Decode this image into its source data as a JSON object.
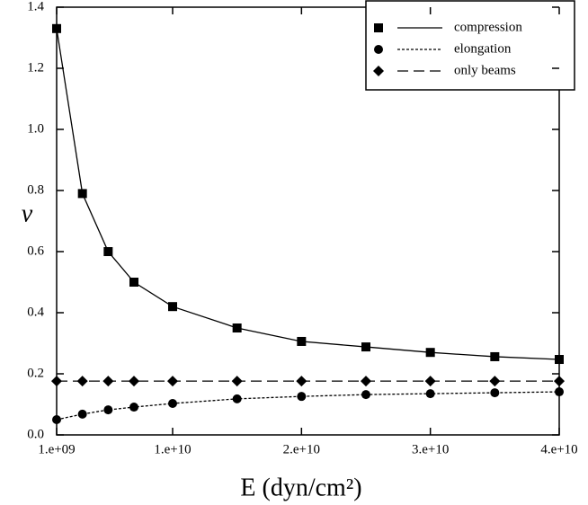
{
  "chart_data": {
    "type": "line",
    "x_label": "E (dyn/cm²)",
    "y_label": "ν",
    "x": [
      1000000000.0,
      3000000000.0,
      5000000000.0,
      7000000000.0,
      10000000000.0,
      15000000000.0,
      20000000000.0,
      25000000000.0,
      30000000000.0,
      35000000000.0,
      40000000000.0
    ],
    "series": [
      {
        "name": "compression",
        "color": "#000000",
        "marker": "square",
        "linestyle": "solid",
        "values": [
          1.33,
          0.79,
          0.6,
          0.5,
          0.42,
          0.35,
          0.306,
          0.288,
          0.27,
          0.256,
          0.247
        ]
      },
      {
        "name": "elongation",
        "color": "#000000",
        "marker": "circle",
        "linestyle": "dotted",
        "values": [
          0.05,
          0.068,
          0.082,
          0.091,
          0.103,
          0.118,
          0.126,
          0.132,
          0.135,
          0.138,
          0.141
        ]
      },
      {
        "name": "only beams",
        "color": "#000000",
        "marker": "diamond",
        "linestyle": "dashed",
        "values": [
          0.176,
          0.176,
          0.176,
          0.176,
          0.176,
          0.176,
          0.176,
          0.176,
          0.176,
          0.176,
          0.176
        ]
      }
    ],
    "xlim": [
      1000000000.0,
      40000000000.0
    ],
    "xticks": [
      {
        "value": 1000000000.0,
        "label": "1.e+09"
      },
      {
        "value": 10000000000.0,
        "label": "1.e+10"
      },
      {
        "value": 20000000000.0,
        "label": "2.e+10"
      },
      {
        "value": 30000000000.0,
        "label": "3.e+10"
      },
      {
        "value": 40000000000.0,
        "label": "4.e+10"
      }
    ],
    "ylim": [
      0,
      1.4
    ],
    "yticks": [
      {
        "value": 0,
        "label": "0.0"
      },
      0.2,
      0.4,
      0.6,
      0.8,
      {
        "value": 1,
        "label": "1.0"
      },
      1.2,
      1.4
    ],
    "legend": "top-right",
    "grid": false
  }
}
